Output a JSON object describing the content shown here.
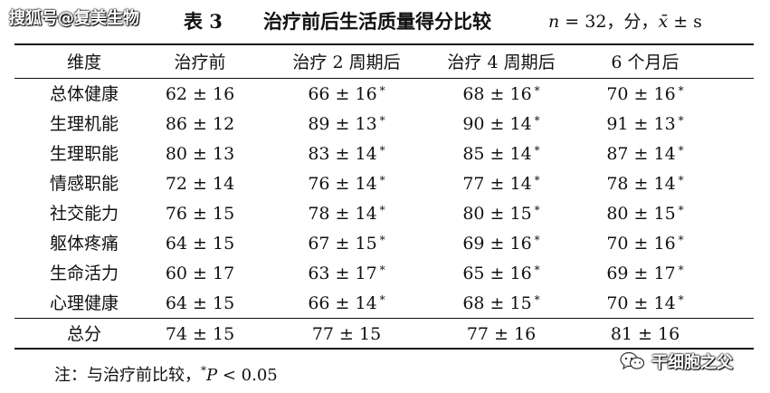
{
  "watermark_top": "搜狐号@复美生物",
  "title": {
    "label": "表 3",
    "main": "治疗前后生活质量得分比较",
    "stat_n": "n",
    "stat_rest": " = 32，分，",
    "stat_x": "x̄",
    "stat_pm": " ± s"
  },
  "table": {
    "headers": [
      "维度",
      "治疗前",
      "治疗 2 周期后",
      "治疗 4 周期后",
      "6 个月后"
    ],
    "rows": [
      {
        "dim": "总体健康",
        "c0": "62 ± 16",
        "c1": "66 ± 16",
        "c2": "68 ± 16",
        "c3": "70 ± 16"
      },
      {
        "dim": "生理机能",
        "c0": "86 ± 12",
        "c1": "89 ± 13",
        "c2": "90 ± 14",
        "c3": "91 ± 13"
      },
      {
        "dim": "生理职能",
        "c0": "80 ± 13",
        "c1": "83 ± 14",
        "c2": "85 ± 14",
        "c3": "87 ± 14"
      },
      {
        "dim": "情感职能",
        "c0": "72 ± 14",
        "c1": "76 ± 14",
        "c2": "77 ± 14",
        "c3": "78 ± 14"
      },
      {
        "dim": "社交能力",
        "c0": "76 ± 15",
        "c1": "78 ± 14",
        "c2": "80 ± 15",
        "c3": "80 ± 15"
      },
      {
        "dim": "躯体疼痛",
        "c0": "64 ± 15",
        "c1": "67 ± 15",
        "c2": "69 ± 16",
        "c3": "70 ± 16"
      },
      {
        "dim": "生命活力",
        "c0": "60 ± 17",
        "c1": "63 ± 17",
        "c2": "65 ± 16",
        "c3": "69 ± 17"
      },
      {
        "dim": "心理健康",
        "c0": "64 ± 15",
        "c1": "66 ± 14",
        "c2": "68 ± 15",
        "c3": "70 ± 14"
      }
    ],
    "total": {
      "dim": "总分",
      "c0": "74 ± 15",
      "c1": "77 ± 15",
      "c2": "77 ± 16",
      "c3": "81 ± 16"
    },
    "mark": "*"
  },
  "note": {
    "prefix": "注：与治疗前比较，",
    "mark": "*",
    "p": "P",
    "rest": " < 0.05"
  },
  "watermark_bottom": {
    "icon": "wechat-icon",
    "text": "干细胞之父"
  }
}
